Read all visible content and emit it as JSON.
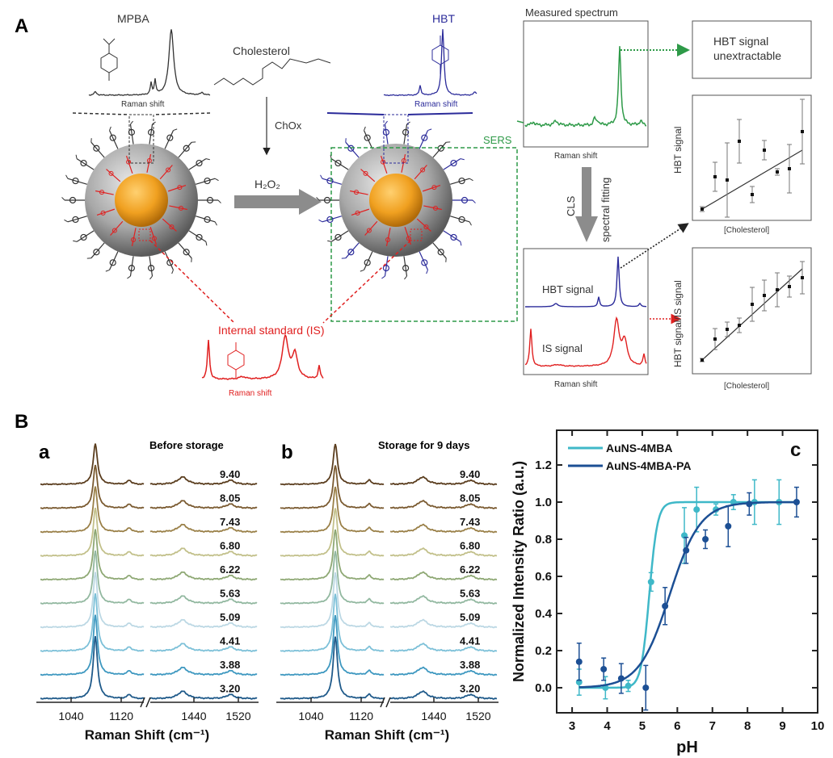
{
  "panel_a": {
    "label": "A",
    "mpba": "MPBA",
    "hbt": "HBT",
    "cholesterol": "Cholesterol",
    "chox": "ChOx",
    "h2o2": "H₂O₂",
    "raman_shift": "Raman shift",
    "internal_standard": "Internal standard (IS)",
    "sers": "SERS",
    "measured_spectrum": "Measured spectrum",
    "unextractable_line1": "HBT signal",
    "unextractable_line2": "unextractable",
    "cls": "CLS",
    "spectral_fitting": "spectral fitting",
    "hbt_signal": "HBT signal",
    "is_signal": "IS signal",
    "plot1_ylabel": "HBT signal",
    "plot2_ylabel": "HBT signal/IS signal",
    "plot_xlabel": "[Cholesterol]",
    "colors": {
      "black": "#333333",
      "blue": "#2b2b9a",
      "red": "#e02020",
      "green": "#2e9a48",
      "gold": "#f0a020"
    }
  },
  "panel_b": {
    "label": "B",
    "spectra_xlabel": "Raman Shift (cm⁻¹)",
    "spectra_ticks": [
      "1040",
      "1120",
      "1440",
      "1520"
    ],
    "ph_labels": [
      "9.40",
      "8.05",
      "7.43",
      "6.80",
      "6.22",
      "5.63",
      "5.09",
      "4.41",
      "3.88",
      "3.20"
    ],
    "spectra_colors": [
      "#5a3d1e",
      "#7a5a30",
      "#9a8048",
      "#c2c08a",
      "#8ea874",
      "#92b8a0",
      "#bcd8e4",
      "#7cc0d8",
      "#3e98c0",
      "#1f5a8a"
    ],
    "sub_a": {
      "letter": "a",
      "title": "Before storage"
    },
    "sub_b": {
      "letter": "b",
      "title": "Storage for 9 days"
    }
  },
  "chart_data": {
    "type": "scatter",
    "panel_letter": "c",
    "xlabel": "pH",
    "ylabel": "Normalized Intensity Ratio (a.u.)",
    "xlim": [
      2.56,
      10
    ],
    "ylim": [
      -0.135,
      1.387
    ],
    "xticks": [
      "3",
      "4",
      "5",
      "6",
      "7",
      "8",
      "9",
      "10"
    ],
    "yticks": [
      "0.0",
      "0.2",
      "0.4",
      "0.6",
      "0.8",
      "1.0",
      "1.2"
    ],
    "legend_position": "top-left",
    "grid": false,
    "series": [
      {
        "name": "AuNS-4MBA",
        "color": "#3fb8c8",
        "x": [
          3.2,
          3.95,
          4.6,
          5.25,
          6.2,
          6.55,
          7.1,
          7.6,
          8.2,
          8.9
        ],
        "y": [
          0.03,
          0.0,
          0.01,
          0.57,
          0.82,
          0.96,
          0.96,
          1.0,
          1.0,
          1.0
        ],
        "err": [
          0.07,
          0.06,
          0.03,
          0.05,
          0.15,
          0.12,
          0.03,
          0.04,
          0.12,
          0.12
        ],
        "fit": {
          "model": "sigmoid",
          "midpoint": 5.2,
          "slope": 8.5
        }
      },
      {
        "name": "AuNS-4MBA-PA",
        "color": "#1c4f94",
        "x": [
          3.2,
          3.9,
          4.4,
          5.1,
          5.65,
          6.25,
          6.8,
          7.45,
          8.05,
          9.4
        ],
        "y": [
          0.14,
          0.1,
          0.05,
          0.0,
          0.44,
          0.74,
          0.8,
          0.87,
          0.99,
          1.0
        ],
        "err": [
          0.1,
          0.06,
          0.08,
          0.12,
          0.1,
          0.07,
          0.05,
          0.11,
          0.06,
          0.08
        ],
        "fit": {
          "model": "sigmoid",
          "midpoint": 5.78,
          "slope": 2.3
        }
      }
    ]
  }
}
